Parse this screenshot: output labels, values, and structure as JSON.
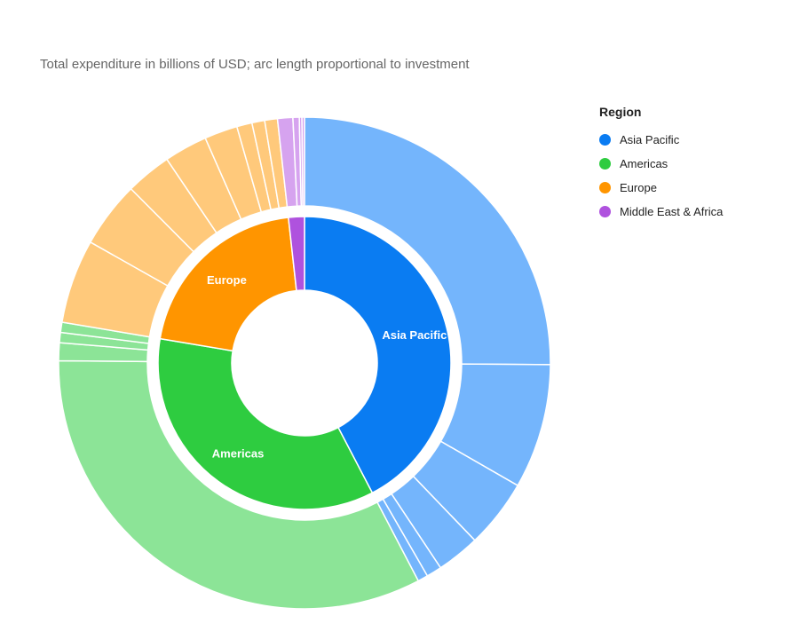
{
  "chart_data": {
    "type": "sunburst",
    "title": "",
    "subtitle": "Total expenditure in billions of USD; arc length proportional to investment",
    "legend": {
      "title": "Region",
      "position": "right",
      "items": [
        {
          "name": "Asia Pacific",
          "color": "#0a7cf2"
        },
        {
          "name": "Americas",
          "color": "#2ecc40"
        },
        {
          "name": "Europe",
          "color": "#ff9500"
        },
        {
          "name": "Middle East & Africa",
          "color": "#af52de"
        }
      ]
    },
    "regions": [
      {
        "name": "Asia Pacific",
        "show_label": true,
        "color": "#0a7cf2",
        "child_color": "#74b5fc",
        "children": [
          150,
          49,
          27,
          17,
          6,
          4
        ]
      },
      {
        "name": "Americas",
        "show_label": true,
        "color": "#2ecc40",
        "child_color": "#8ce497",
        "children": [
          196,
          7,
          4,
          4
        ]
      },
      {
        "name": "Europe",
        "show_label": true,
        "color": "#ff9500",
        "child_color": "#ffc97b",
        "children": [
          33,
          26,
          18,
          17,
          13,
          6,
          5,
          5
        ]
      },
      {
        "name": "Middle East & Africa",
        "show_label": false,
        "color": "#af52de",
        "child_color": "#d6a3ef",
        "children": [
          6,
          2.5,
          1,
          1
        ]
      }
    ]
  }
}
